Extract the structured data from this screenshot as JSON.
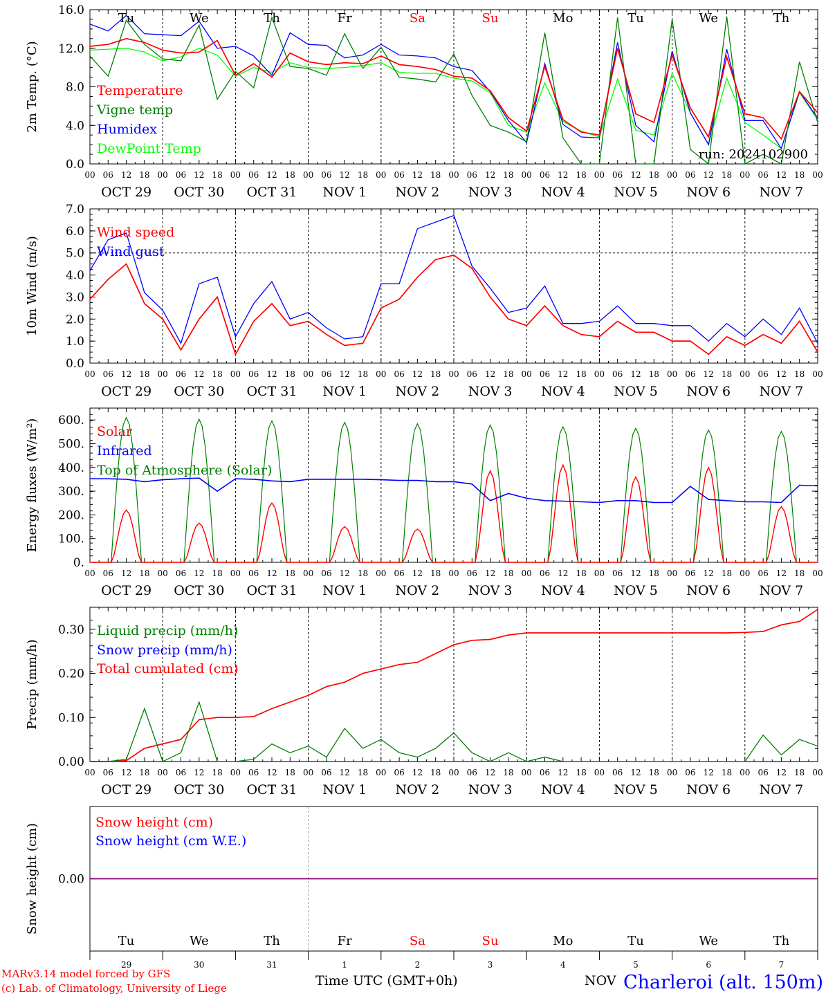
{
  "x_axis": {
    "hour_labels": [
      "00",
      "06",
      "12",
      "18"
    ],
    "date_labels": [
      "OCT 29",
      "OCT 30",
      "OCT 31",
      "NOV  1",
      "NOV  2",
      "NOV  3",
      "NOV  4",
      "NOV  5",
      "NOV  6",
      "NOV  7"
    ],
    "weekdays": [
      "Tu",
      "We",
      "Th",
      "Fr",
      "Sa",
      "Su",
      "Mo",
      "Tu",
      "We",
      "Th"
    ],
    "weekend_color": "#ff0000",
    "weekend_index": [
      4,
      5
    ],
    "day_numbers": [
      "29",
      "30",
      "31",
      "1",
      "2",
      "3",
      "4",
      "5",
      "6",
      "7"
    ],
    "month_label": "NOV",
    "time_label": "Time UTC (GMT+0h)"
  },
  "footer": {
    "model_line": "MARv3.14 model forced by GFS",
    "credit_line": "(c) Lab. of Climatology, University of Liege",
    "station": "Charleroi (alt. 150m)"
  },
  "chart_data": [
    {
      "type": "line",
      "ylabel": "2m Temp. (°C)",
      "ylim": [
        0,
        16
      ],
      "yticks": [
        "0.0",
        "4.0",
        "8.0",
        "12.0",
        "16.0"
      ],
      "run_label": "run: 2024102900",
      "legend": [
        {
          "name": "Temperature",
          "color": "#ff0000"
        },
        {
          "name": "Vigne temp",
          "color": "#008000"
        },
        {
          "name": "Humidex",
          "color": "#0000ff"
        },
        {
          "name": "DewPoint Temp",
          "color": "#00ff00"
        }
      ],
      "x_hours": [
        0,
        6,
        12,
        18,
        24,
        30,
        36,
        42,
        48,
        54,
        60,
        66,
        72,
        78,
        84,
        90,
        96,
        102,
        108,
        114,
        120,
        126,
        132,
        138,
        144,
        150,
        156,
        162,
        168,
        174,
        180,
        186,
        192,
        198,
        204,
        210,
        216,
        222,
        228,
        234,
        240
      ],
      "series": [
        {
          "name": "Temperature",
          "color": "#ff0000",
          "values": [
            12.2,
            12.4,
            13.0,
            12.6,
            11.8,
            11.5,
            11.6,
            12.8,
            9.2,
            10.4,
            9.0,
            11.5,
            10.6,
            10.3,
            10.5,
            10.4,
            11.2,
            10.3,
            10.1,
            9.8,
            9.1,
            8.9,
            7.6,
            4.8,
            3.4,
            10.1,
            4.6,
            3.3,
            3.0,
            12.0,
            5.2,
            4.3,
            11.3,
            5.8,
            2.8,
            11.1,
            5.2,
            4.8,
            2.6,
            7.5,
            5.3
          ]
        },
        {
          "name": "Vigne temp",
          "color": "#008000",
          "values": [
            11.2,
            9.1,
            14.9,
            12.4,
            10.9,
            10.7,
            14.4,
            6.7,
            9.6,
            7.9,
            15.2,
            10.1,
            9.9,
            9.2,
            13.5,
            9.9,
            12.1,
            9.0,
            8.8,
            8.5,
            11.4,
            7.1,
            4.0,
            3.3,
            2.3,
            13.6,
            2.7,
            0.0,
            0.0,
            15.2,
            0.0,
            0.0,
            15.0,
            1.5,
            0.0,
            15.3,
            0.0,
            1.0,
            0.0,
            10.6,
            4.3
          ]
        },
        {
          "name": "Humidex",
          "color": "#0000ff",
          "values": [
            14.5,
            13.8,
            15.4,
            13.5,
            13.4,
            13.3,
            14.8,
            12.0,
            12.2,
            11.2,
            9.2,
            13.6,
            12.4,
            12.3,
            11.0,
            11.3,
            12.4,
            11.3,
            11.2,
            11.0,
            10.1,
            9.7,
            7.5,
            4.5,
            2.2,
            10.4,
            4.1,
            2.8,
            2.7,
            12.6,
            4.0,
            2.3,
            11.7,
            5.3,
            2.0,
            11.9,
            4.5,
            4.5,
            1.6,
            7.5,
            4.7
          ]
        },
        {
          "name": "DewPoint Temp",
          "color": "#00ff00",
          "values": [
            11.8,
            11.9,
            12.0,
            11.6,
            10.7,
            11.1,
            12.0,
            11.3,
            9.1,
            10.0,
            9.5,
            10.5,
            10.0,
            9.9,
            10.0,
            10.2,
            10.5,
            9.5,
            9.4,
            9.4,
            8.9,
            8.6,
            7.4,
            4.0,
            3.3,
            8.4,
            4.4,
            3.4,
            2.8,
            8.8,
            3.5,
            3.0,
            9.4,
            5.3,
            2.0,
            8.9,
            4.3,
            3.0,
            1.6,
            7.4,
            4.6
          ]
        }
      ]
    },
    {
      "type": "line",
      "ylabel": "10m Wind (m/s)",
      "ylim": [
        0,
        7
      ],
      "yticks": [
        "0.0",
        "1.0",
        "2.0",
        "3.0",
        "4.0",
        "5.0",
        "6.0",
        "7.0"
      ],
      "legend": [
        {
          "name": "Wind speed",
          "color": "#ff0000"
        },
        {
          "name": "Wind gust",
          "color": "#0000ff"
        }
      ],
      "x_hours": [
        0,
        6,
        12,
        18,
        24,
        30,
        36,
        42,
        48,
        54,
        60,
        66,
        72,
        78,
        84,
        90,
        96,
        102,
        108,
        114,
        120,
        126,
        132,
        138,
        144,
        150,
        156,
        162,
        168,
        174,
        180,
        186,
        192,
        198,
        204,
        210,
        216,
        222,
        228,
        234,
        240
      ],
      "series": [
        {
          "name": "Wind speed",
          "color": "#ff0000",
          "values": [
            2.9,
            3.8,
            4.5,
            2.7,
            2.0,
            0.6,
            2.0,
            3.0,
            0.4,
            1.9,
            2.7,
            1.7,
            1.9,
            1.3,
            0.8,
            0.9,
            2.5,
            2.9,
            3.9,
            4.7,
            4.9,
            4.3,
            3.0,
            2.0,
            1.7,
            2.6,
            1.7,
            1.3,
            1.2,
            1.9,
            1.4,
            1.4,
            1.0,
            1.0,
            0.4,
            1.2,
            0.8,
            1.3,
            0.9,
            1.9,
            0.5
          ]
        },
        {
          "name": "Wind gust",
          "color": "#0000ff",
          "values": [
            4.2,
            5.6,
            5.9,
            3.2,
            2.4,
            0.9,
            3.6,
            3.9,
            1.2,
            2.7,
            3.7,
            2.0,
            2.3,
            1.6,
            1.1,
            1.2,
            3.6,
            3.6,
            6.1,
            6.4,
            6.7,
            4.4,
            3.4,
            2.3,
            2.5,
            3.5,
            1.8,
            1.8,
            1.9,
            2.6,
            1.8,
            1.8,
            1.7,
            1.7,
            1.0,
            1.8,
            1.2,
            2.0,
            1.3,
            2.5,
            0.9
          ]
        }
      ]
    },
    {
      "type": "line",
      "ylabel": "Energy fluxes (W/m²)",
      "ylim": [
        0,
        650
      ],
      "yticks": [
        "0.",
        "100.",
        "200.",
        "300.",
        "400.",
        "500.",
        "600."
      ],
      "legend": [
        {
          "name": "Solar",
          "color": "#ff0000"
        },
        {
          "name": "Infrared",
          "color": "#0000ff"
        },
        {
          "name": "Top of Atmosphere (Solar)",
          "color": "#008000"
        }
      ],
      "solar_peaks": [
        {
          "day": 0,
          "solar": 220,
          "toa": 610
        },
        {
          "day": 1,
          "solar": 165,
          "toa": 603
        },
        {
          "day": 2,
          "solar": 250,
          "toa": 596
        },
        {
          "day": 3,
          "solar": 150,
          "toa": 590
        },
        {
          "day": 4,
          "solar": 140,
          "toa": 584
        },
        {
          "day": 5,
          "solar": 385,
          "toa": 578
        },
        {
          "day": 6,
          "solar": 410,
          "toa": 571
        },
        {
          "day": 7,
          "solar": 360,
          "toa": 565
        },
        {
          "day": 8,
          "solar": 400,
          "toa": 558
        },
        {
          "day": 9,
          "solar": 235,
          "toa": 552
        }
      ],
      "daylight_hours": [
        7,
        17
      ],
      "x_hours": [
        0,
        6,
        12,
        18,
        24,
        30,
        36,
        42,
        48,
        54,
        60,
        66,
        72,
        78,
        84,
        90,
        96,
        102,
        108,
        114,
        120,
        126,
        132,
        138,
        144,
        150,
        156,
        162,
        168,
        174,
        180,
        186,
        192,
        198,
        204,
        210,
        216,
        222,
        228,
        234,
        240
      ],
      "infrared": [
        352,
        352,
        350,
        340,
        348,
        352,
        355,
        300,
        352,
        350,
        343,
        340,
        350,
        350,
        350,
        350,
        348,
        345,
        345,
        340,
        340,
        330,
        260,
        290,
        270,
        260,
        258,
        255,
        252,
        260,
        260,
        252,
        252,
        320,
        265,
        260,
        255,
        255,
        252,
        325,
        322
      ]
    },
    {
      "type": "line",
      "ylabel": "Precip (mm/h)",
      "ylim": [
        0,
        0.35
      ],
      "yticks": [
        "0.00",
        "0.10",
        "0.20",
        "0.30"
      ],
      "legend": [
        {
          "name": "Liquid precip (mm/h)",
          "color": "#008000"
        },
        {
          "name": "Snow precip (mm/h)",
          "color": "#0000ff"
        },
        {
          "name": "Total cumulated (cm)",
          "color": "#ff0000"
        }
      ],
      "x_hours": [
        0,
        6,
        12,
        18,
        24,
        30,
        36,
        42,
        48,
        54,
        60,
        66,
        72,
        78,
        84,
        90,
        96,
        102,
        108,
        114,
        120,
        126,
        132,
        138,
        144,
        150,
        156,
        162,
        168,
        174,
        180,
        186,
        192,
        198,
        204,
        210,
        216,
        222,
        228,
        234,
        240
      ],
      "series": [
        {
          "name": "Liquid precip (mm/h)",
          "color": "#008000",
          "values": [
            0.0,
            0.0,
            0.005,
            0.12,
            0.0,
            0.02,
            0.135,
            0.0,
            0.0,
            0.005,
            0.04,
            0.02,
            0.035,
            0.01,
            0.075,
            0.03,
            0.05,
            0.02,
            0.01,
            0.03,
            0.065,
            0.02,
            0.0,
            0.02,
            0.0,
            0.01,
            0.0,
            0.0,
            0.0,
            0.0,
            0.0,
            0.0,
            0.0,
            0.0,
            0.0,
            0.0,
            0.0,
            0.06,
            0.015,
            0.05,
            0.035
          ]
        },
        {
          "name": "Snow precip (mm/h)",
          "color": "#0000ff",
          "values": [
            0,
            0,
            0,
            0,
            0,
            0,
            0,
            0,
            0,
            0,
            0,
            0,
            0,
            0,
            0,
            0,
            0,
            0,
            0,
            0,
            0,
            0,
            0,
            0,
            0,
            0,
            0,
            0,
            0,
            0,
            0,
            0,
            0,
            0,
            0,
            0,
            0,
            0,
            0,
            0,
            0
          ]
        },
        {
          "name": "Total cumulated (cm)",
          "color": "#ff0000",
          "values": [
            0.0,
            0.0,
            0.002,
            0.03,
            0.04,
            0.05,
            0.095,
            0.1,
            0.1,
            0.102,
            0.12,
            0.135,
            0.15,
            0.17,
            0.18,
            0.2,
            0.21,
            0.22,
            0.225,
            0.245,
            0.265,
            0.275,
            0.277,
            0.287,
            0.292,
            0.292,
            0.292,
            0.292,
            0.292,
            0.292,
            0.292,
            0.292,
            0.292,
            0.292,
            0.292,
            0.292,
            0.293,
            0.295,
            0.31,
            0.318,
            0.345
          ]
        }
      ]
    },
    {
      "type": "line",
      "ylabel": "Snow height (cm)",
      "ylim": [
        -1,
        1
      ],
      "yticks": [
        "0.00"
      ],
      "legend": [
        {
          "name": "Snow height (cm)",
          "color": "#ff0000"
        },
        {
          "name": "Snow height (cm W.E.)",
          "color": "#0000ff"
        }
      ],
      "x_hours": [
        0,
        240
      ],
      "series": [
        {
          "name": "Snow height (cm)",
          "color": "#ff0000",
          "values": [
            0,
            0
          ]
        },
        {
          "name": "Snow height (cm W.E.)",
          "color": "#0000ff",
          "values": [
            0,
            0
          ]
        }
      ]
    }
  ]
}
